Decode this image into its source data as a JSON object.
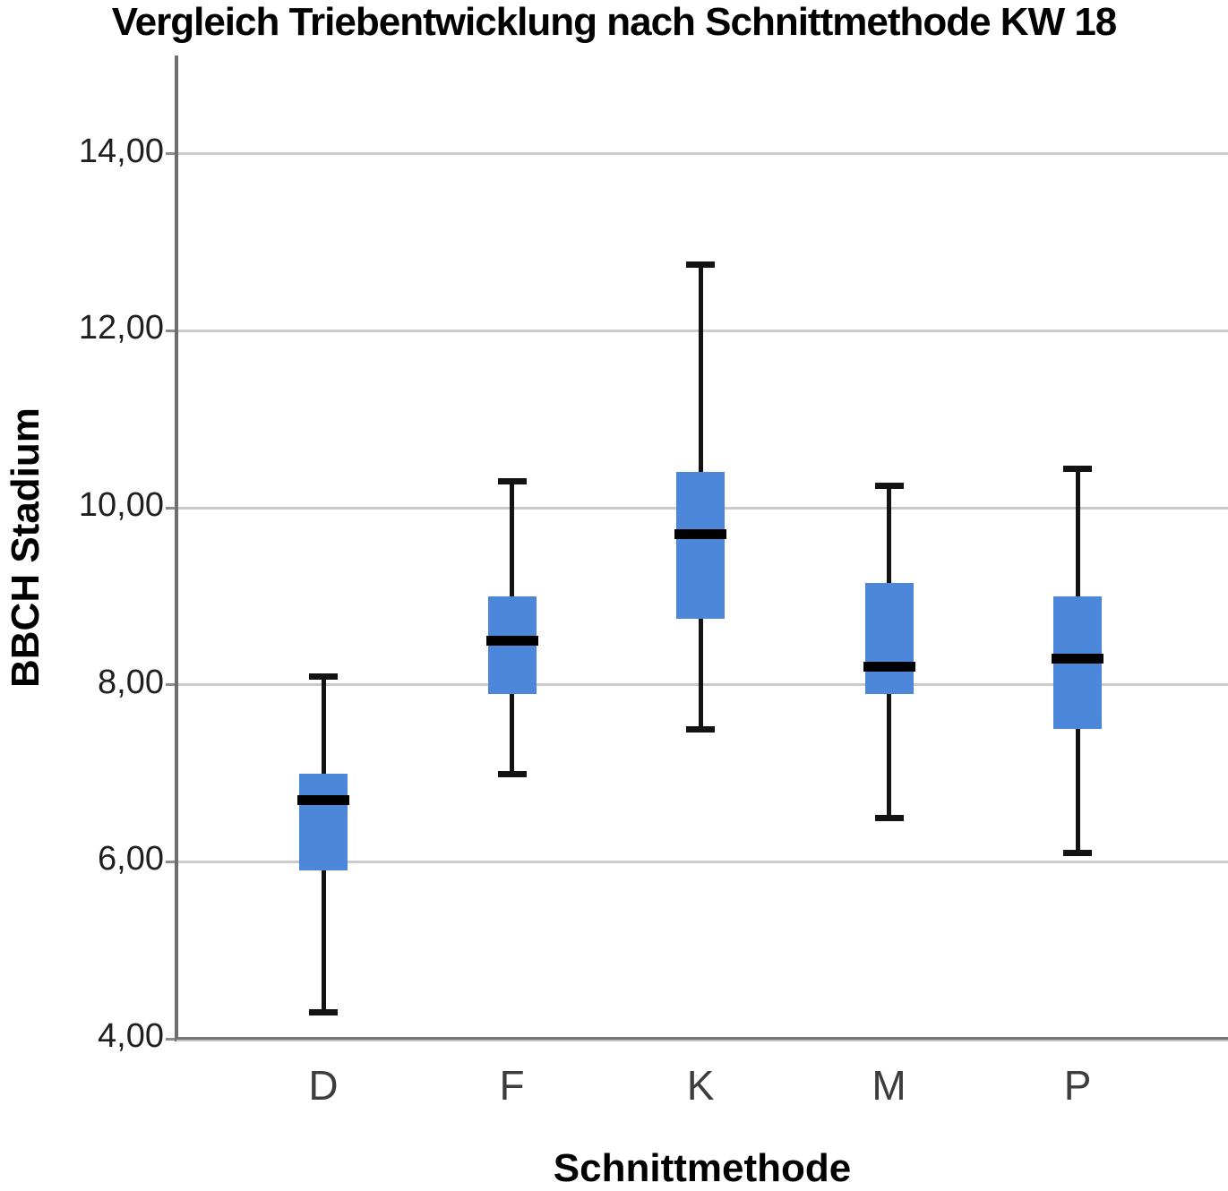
{
  "chart_data": {
    "type": "boxplot",
    "title": "Vergleich Triebentwicklung nach Schnittmethode KW 18",
    "xlabel": "Schnittmethode",
    "ylabel": "BBCH Stadium",
    "categories": [
      "D",
      "F",
      "K",
      "M",
      "P"
    ],
    "boxes": [
      {
        "category": "D",
        "min": 4.3,
        "q1": 5.9,
        "median": 6.7,
        "q3": 7.0,
        "max": 8.1
      },
      {
        "category": "F",
        "min": 7.0,
        "q1": 7.9,
        "median": 8.5,
        "q3": 9.0,
        "max": 10.3
      },
      {
        "category": "K",
        "min": 7.5,
        "q1": 8.75,
        "median": 9.7,
        "q3": 10.4,
        "max": 12.75
      },
      {
        "category": "M",
        "min": 6.5,
        "q1": 7.9,
        "median": 8.2,
        "q3": 9.15,
        "max": 10.25
      },
      {
        "category": "P",
        "min": 6.1,
        "q1": 7.5,
        "median": 8.3,
        "q3": 9.0,
        "max": 10.45
      }
    ],
    "yticks": [
      {
        "value": 4,
        "label": "4,00"
      },
      {
        "value": 6,
        "label": "6,00"
      },
      {
        "value": 8,
        "label": "8,00"
      },
      {
        "value": 10,
        "label": "10,00"
      },
      {
        "value": 12,
        "label": "12,00"
      },
      {
        "value": 14,
        "label": "14,00"
      }
    ],
    "ylim": [
      4,
      15.1
    ],
    "grid": "horizontal",
    "legend": "none",
    "decimal_separator": ",",
    "colors": {
      "box_fill": "#4d87da",
      "median": "#000000",
      "whisker": "#131313",
      "gridline": "#cbcbcb",
      "axis": "#6e6e6e",
      "background": "#ffffff"
    }
  }
}
